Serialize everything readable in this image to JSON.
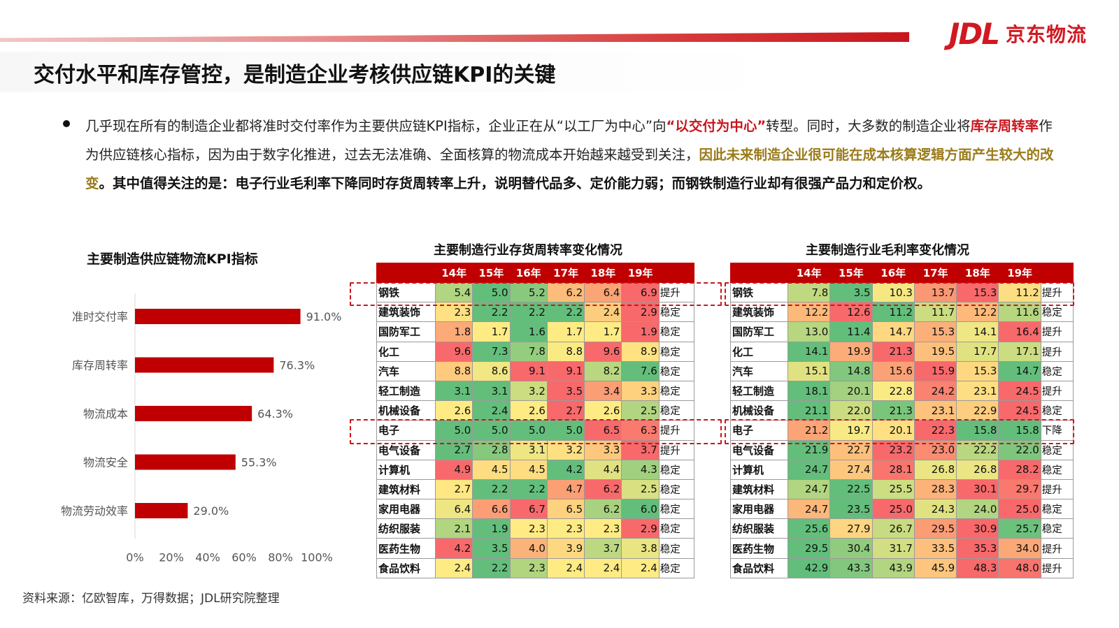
{
  "brand": {
    "mark": "JDL",
    "name": "京东物流"
  },
  "title": "交付水平和库存管控，是制造企业考核供应链KPI的关键",
  "paragraph": {
    "p1": "几乎现在所有的制造企业都将准时交付率作为主要供应链KPI指标，企业正在从“以工厂为中心”向",
    "p2": "“以交付为中心”",
    "p3": "转型。同时，大多数的制造企业将",
    "p4": "库存周转率",
    "p5": "作为供应链核心指标，因为由于数字化推进，过去无法准确、全面核算的物流成本开始越来越受到关注，",
    "p6": "因此未来制造企业很可能在成本核算逻辑方面产生较大的改变",
    "p7": "。其中值得关注的是：电子行业毛利率下降同时存货周转率上升，说明替代品多、定价能力弱；而钢铁制造行业却有很强产品力和定价权。"
  },
  "chart_data": [
    {
      "type": "bar",
      "orientation": "horizontal",
      "title": "主要制造供应链物流KPI指标",
      "categories": [
        "准时交付率",
        "库存周转率",
        "物流成本",
        "物流安全",
        "物流劳动效率"
      ],
      "values": [
        91.0,
        76.3,
        64.3,
        55.3,
        29.0
      ],
      "value_labels": [
        "91.0%",
        "76.3%",
        "64.3%",
        "55.3%",
        "29.0%"
      ],
      "xlim": [
        0,
        100
      ],
      "xticks": [
        "0%",
        "20%",
        "40%",
        "60%",
        "80%",
        "100%"
      ],
      "bar_color": "#c00000"
    },
    {
      "type": "table",
      "title": "主要制造行业存货周转率变化情况",
      "columns": [
        "14年",
        "15年",
        "16年",
        "17年",
        "18年",
        "19年"
      ],
      "rows": [
        {
          "name": "钢铁",
          "values": [
            5.4,
            5.0,
            5.2,
            6.2,
            6.4,
            6.9
          ],
          "trend": "提升"
        },
        {
          "name": "建筑装饰",
          "values": [
            2.3,
            2.2,
            2.2,
            2.2,
            2.4,
            2.9
          ],
          "trend": "稳定"
        },
        {
          "name": "国防军工",
          "values": [
            1.8,
            1.7,
            1.6,
            1.7,
            1.7,
            1.9
          ],
          "trend": "稳定"
        },
        {
          "name": "化工",
          "values": [
            9.6,
            7.3,
            7.8,
            8.8,
            9.6,
            8.9
          ],
          "trend": "稳定"
        },
        {
          "name": "汽车",
          "values": [
            8.8,
            8.6,
            9.1,
            9.1,
            8.2,
            7.6
          ],
          "trend": "稳定"
        },
        {
          "name": "轻工制造",
          "values": [
            3.1,
            3.1,
            3.2,
            3.5,
            3.4,
            3.3
          ],
          "trend": "稳定"
        },
        {
          "name": "机械设备",
          "values": [
            2.6,
            2.4,
            2.6,
            2.7,
            2.6,
            2.5
          ],
          "trend": "稳定"
        },
        {
          "name": "电子",
          "values": [
            5.0,
            5.0,
            5.0,
            5.0,
            6.5,
            6.3
          ],
          "trend": "提升"
        },
        {
          "name": "电气设备",
          "values": [
            2.7,
            2.8,
            3.1,
            3.2,
            3.3,
            3.7
          ],
          "trend": "提升"
        },
        {
          "name": "计算机",
          "values": [
            4.9,
            4.5,
            4.5,
            4.2,
            4.4,
            4.3
          ],
          "trend": "稳定"
        },
        {
          "name": "建筑材料",
          "values": [
            2.7,
            2.2,
            2.2,
            4.7,
            6.2,
            2.5
          ],
          "trend": "稳定"
        },
        {
          "name": "家用电器",
          "values": [
            6.4,
            6.6,
            6.7,
            6.5,
            6.2,
            6.0
          ],
          "trend": "稳定"
        },
        {
          "name": "纺织服装",
          "values": [
            2.1,
            1.9,
            2.3,
            2.3,
            2.3,
            2.9
          ],
          "trend": "稳定"
        },
        {
          "name": "医药生物",
          "values": [
            4.2,
            3.5,
            4.0,
            3.9,
            3.7,
            3.8
          ],
          "trend": "稳定"
        },
        {
          "name": "食品饮料",
          "values": [
            2.4,
            2.2,
            2.3,
            2.4,
            2.4,
            2.4
          ],
          "trend": "稳定"
        }
      ],
      "highlighted_rows": [
        "钢铁",
        "电子"
      ],
      "color_scale": {
        "low": "#63be7b",
        "mid": "#ffeb84",
        "high": "#f8696b"
      }
    },
    {
      "type": "table",
      "title": "主要制造行业毛利率变化情况",
      "columns": [
        "14年",
        "15年",
        "16年",
        "17年",
        "18年",
        "19年"
      ],
      "rows": [
        {
          "name": "钢铁",
          "values": [
            7.8,
            3.5,
            10.3,
            13.7,
            15.3,
            11.2
          ],
          "trend": "提升"
        },
        {
          "name": "建筑装饰",
          "values": [
            12.2,
            12.6,
            11.2,
            11.7,
            12.2,
            11.6
          ],
          "trend": "稳定"
        },
        {
          "name": "国防军工",
          "values": [
            13.0,
            11.4,
            14.7,
            15.3,
            14.1,
            16.4
          ],
          "trend": "提升"
        },
        {
          "name": "化工",
          "values": [
            14.1,
            19.9,
            21.3,
            19.5,
            17.7,
            17.1
          ],
          "trend": "提升"
        },
        {
          "name": "汽车",
          "values": [
            15.1,
            14.8,
            15.6,
            15.9,
            15.3,
            14.7
          ],
          "trend": "稳定"
        },
        {
          "name": "轻工制造",
          "values": [
            18.1,
            20.1,
            22.8,
            24.2,
            23.1,
            24.5
          ],
          "trend": "提升"
        },
        {
          "name": "机械设备",
          "values": [
            21.1,
            22.0,
            21.3,
            23.1,
            22.9,
            24.5
          ],
          "trend": "稳定"
        },
        {
          "name": "电子",
          "values": [
            21.2,
            19.7,
            20.1,
            22.3,
            15.8,
            15.8
          ],
          "trend": "下降"
        },
        {
          "name": "电气设备",
          "values": [
            21.9,
            22.7,
            23.2,
            23.0,
            22.2,
            22.0
          ],
          "trend": "稳定"
        },
        {
          "name": "计算机",
          "values": [
            24.7,
            27.4,
            28.1,
            26.8,
            26.8,
            28.2
          ],
          "trend": "稳定"
        },
        {
          "name": "建筑材料",
          "values": [
            24.7,
            22.5,
            25.5,
            28.3,
            30.1,
            29.7
          ],
          "trend": "提升"
        },
        {
          "name": "家用电器",
          "values": [
            24.7,
            23.5,
            25.0,
            24.3,
            24.0,
            25.0
          ],
          "trend": "稳定"
        },
        {
          "name": "纺织服装",
          "values": [
            25.6,
            27.9,
            26.7,
            29.5,
            30.9,
            25.7
          ],
          "trend": "稳定"
        },
        {
          "name": "医药生物",
          "values": [
            29.5,
            30.4,
            31.7,
            33.5,
            35.3,
            34.0
          ],
          "trend": "提升"
        },
        {
          "name": "食品饮料",
          "values": [
            42.9,
            43.3,
            43.9,
            45.9,
            48.3,
            48.0
          ],
          "trend": "提升"
        }
      ],
      "highlighted_rows": [
        "钢铁",
        "电子"
      ],
      "color_scale": {
        "low": "#63be7b",
        "mid": "#ffeb84",
        "high": "#f8696b"
      }
    }
  ],
  "source": "资料来源：亿欧智库，万得数据；JDL研究院整理"
}
